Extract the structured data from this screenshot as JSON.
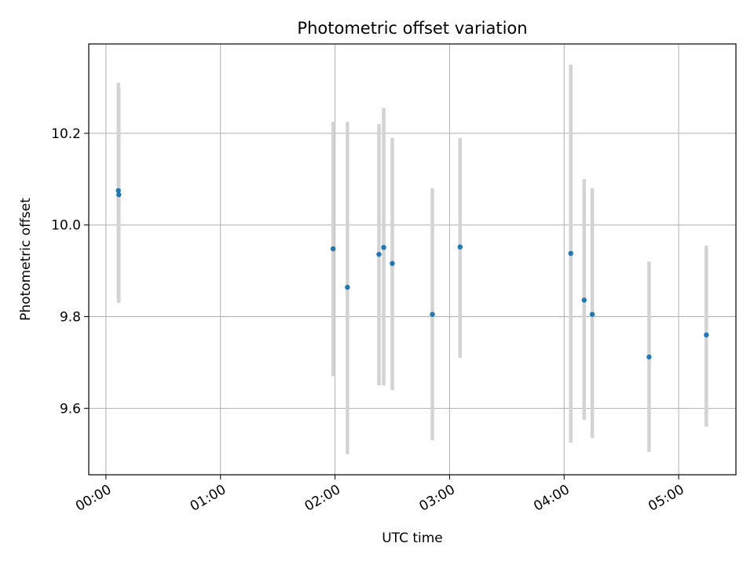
{
  "chart_data": {
    "type": "scatter",
    "title": "Photometric offset variation",
    "xlabel": "UTC time",
    "ylabel": "Photometric offset",
    "x_ticks": [
      "00:00",
      "01:00",
      "02:00",
      "03:00",
      "04:00",
      "05:00"
    ],
    "x_tick_minutes": [
      0,
      60,
      120,
      180,
      240,
      300
    ],
    "y_ticks": [
      "9.6",
      "9.8",
      "10.0",
      "10.2"
    ],
    "y_tick_values": [
      9.6,
      9.8,
      10.0,
      10.2
    ],
    "xlim": [
      "-00:09",
      "05:30"
    ],
    "ylim": [
      9.455,
      10.395
    ],
    "grid": true,
    "colors": {
      "point": "#1f77b4",
      "errorbar": "#d3d3d3",
      "grid": "#b0b0b0",
      "axes": "#000000"
    },
    "points": [
      {
        "time": "00:06:30",
        "y": 10.075,
        "err_low": 9.84,
        "err_high": 10.31
      },
      {
        "time": "00:06:45",
        "y": 10.066,
        "err_low": 9.83,
        "err_high": 10.3
      },
      {
        "time": "01:59:00",
        "y": 9.948,
        "err_low": 9.67,
        "err_high": 10.225
      },
      {
        "time": "02:06:30",
        "y": 9.864,
        "err_low": 9.5,
        "err_high": 10.225
      },
      {
        "time": "02:23:00",
        "y": 9.936,
        "err_low": 9.65,
        "err_high": 10.22
      },
      {
        "time": "02:25:30",
        "y": 9.951,
        "err_low": 9.65,
        "err_high": 10.255
      },
      {
        "time": "02:30:00",
        "y": 9.916,
        "err_low": 9.64,
        "err_high": 10.19
      },
      {
        "time": "02:51:00",
        "y": 9.805,
        "err_low": 9.53,
        "err_high": 10.08
      },
      {
        "time": "03:05:30",
        "y": 9.952,
        "err_low": 9.71,
        "err_high": 10.19
      },
      {
        "time": "04:03:30",
        "y": 9.938,
        "err_low": 9.525,
        "err_high": 10.35
      },
      {
        "time": "04:10:30",
        "y": 9.836,
        "err_low": 9.575,
        "err_high": 10.1
      },
      {
        "time": "04:14:45",
        "y": 9.805,
        "err_low": 9.535,
        "err_high": 10.08
      },
      {
        "time": "04:44:30",
        "y": 9.712,
        "err_low": 9.505,
        "err_high": 9.92
      },
      {
        "time": "05:14:30",
        "y": 9.76,
        "err_low": 9.56,
        "err_high": 9.955
      }
    ]
  }
}
